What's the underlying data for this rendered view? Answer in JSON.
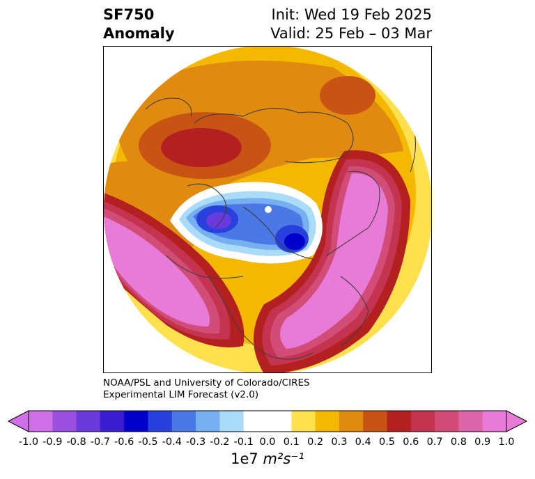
{
  "title": {
    "left_line1": "SF750",
    "left_line2": "Anomaly",
    "right_line1": "Init: Wed 19 Feb 2025",
    "right_line2": "Valid: 25 Feb – 03 Mar"
  },
  "credit": {
    "line1": "NOAA/PSL and University of Colorado/CIRES",
    "line2": "Experimental LIM Forecast (v2.0)"
  },
  "colorbar": {
    "ticks": [
      "-1.0",
      "-0.9",
      "-0.8",
      "-0.7",
      "-0.6",
      "-0.5",
      "-0.4",
      "-0.3",
      "-0.2",
      "-0.1",
      "0.0",
      "0.1",
      "0.2",
      "0.3",
      "0.4",
      "0.5",
      "0.6",
      "0.7",
      "0.8",
      "0.9",
      "1.0"
    ],
    "colors": [
      "#d070e8",
      "#9a50e0",
      "#6a3adc",
      "#3c1ed0",
      "#0000cc",
      "#2840dc",
      "#4c78e6",
      "#76b0f0",
      "#aadcfa",
      "#ffffff",
      "#ffffff",
      "#ffe04e",
      "#f4b800",
      "#e08a10",
      "#c85414",
      "#b42020",
      "#c43450",
      "#d24c78",
      "#dc64a8",
      "#e87ad8"
    ],
    "units_prefix": "1e7",
    "units_math": "m²s⁻¹"
  },
  "map_colors": {
    "positive": [
      "#ffe04e",
      "#f4b800",
      "#e08a10",
      "#c85414",
      "#b42020",
      "#c43450",
      "#d24c78",
      "#e87ad8"
    ],
    "negative": [
      "#aadcfa",
      "#76b0f0",
      "#4c78e6",
      "#2840dc",
      "#0000cc",
      "#6a3adc"
    ]
  }
}
